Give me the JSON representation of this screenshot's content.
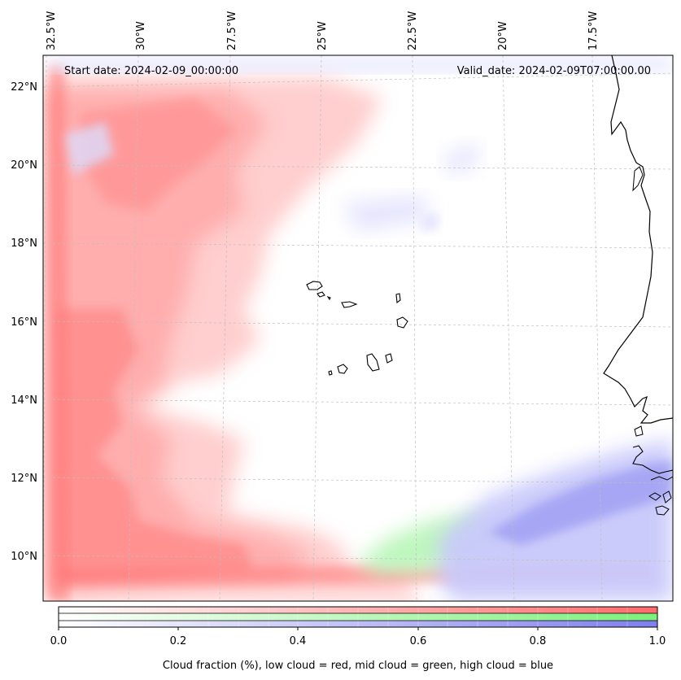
{
  "header": {
    "start_date": "Start date: 2024-02-09_00:00:00",
    "valid_date": "Valid_date: 2024-02-09T07:00:00.00"
  },
  "axes": {
    "lon_labels": [
      "32.5°W",
      "30°W",
      "27.5°W",
      "25°W",
      "22.5°W",
      "20°W",
      "17.5°W"
    ],
    "lat_labels": [
      "22°N",
      "20°N",
      "18°N",
      "16°N",
      "14°N",
      "12°N",
      "10°N"
    ]
  },
  "colorbar": {
    "ticks": [
      "0.0",
      "0.2",
      "0.4",
      "0.6",
      "0.8",
      "1.0"
    ],
    "label": "Cloud fraction (%), low cloud = red, mid cloud = green, high cloud = blue",
    "colors": {
      "low": "#ff6b6b",
      "mid": "#7cf07c",
      "high": "#7f7fee"
    }
  }
}
